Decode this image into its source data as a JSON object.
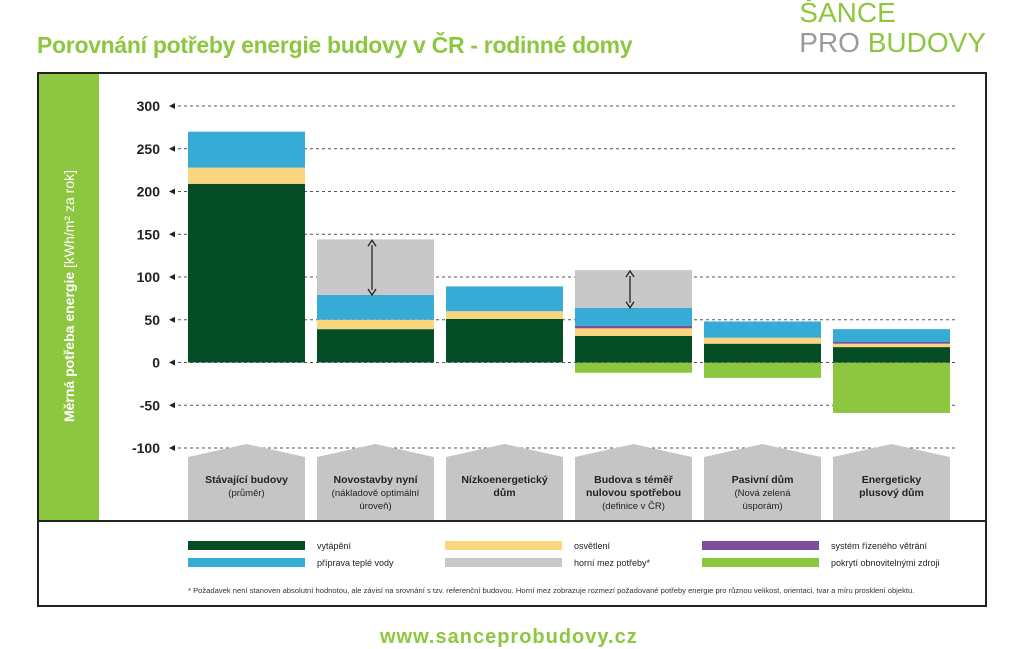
{
  "title": "Porovnání potřeby energie budovy v ČR - rodinné domy",
  "logo": {
    "line1": "ŠANCE",
    "pro": "PRO",
    "budovy": "BUDOVY"
  },
  "footer_url": "www.sanceprobudovy.cz",
  "footnote": "* Požadavek není stanoven absolutní hodnotou, ale závisí na srovnání s tzv. referenční budovou. Horní mez zobrazuje rozmezí požadované potřeby energie pro různou velikost, orientaci, tvar a míru prosklení objektu.",
  "colors": {
    "vytapeni": "#054d27",
    "osvetleni": "#f8d77e",
    "ventilace": "#7b4f9d",
    "tepla_voda": "#36abd6",
    "horni_mez": "#c8c8c8",
    "obnovitelne": "#8dc63f",
    "sidebar": "#8dc63f",
    "category_box": "#c5c5c5"
  },
  "chart_data": {
    "type": "bar",
    "stacked": true,
    "ylabel_bold": "Měrná potřeba energie",
    "ylabel_rest": " [kWh/m² za rok]",
    "ylim": [
      -100,
      300
    ],
    "yticks": [
      "300",
      "250",
      "200",
      "150",
      "100",
      "50",
      "0",
      "-50",
      "-100"
    ],
    "ytick_values": [
      300,
      250,
      200,
      150,
      100,
      50,
      0,
      -50,
      -100
    ],
    "grid": "dashed horizontal",
    "legend_position": "bottom",
    "categories": [
      {
        "lines": [
          "Stávající budovy"
        ],
        "sub": [
          "(průměr)"
        ]
      },
      {
        "lines": [
          "Novostavby nyní"
        ],
        "sub": [
          "(nákladově optimální",
          "úroveň)"
        ]
      },
      {
        "lines": [
          "Nízkoenergetický",
          "dům"
        ],
        "sub": []
      },
      {
        "lines": [
          "Budova s téměř",
          "nulovou spotřebou"
        ],
        "sub": [
          "(definice v ČR)"
        ]
      },
      {
        "lines": [
          "Pasivní dům"
        ],
        "sub": [
          "(Nová zelená",
          "úsporám)"
        ]
      },
      {
        "lines": [
          "Energeticky",
          "plusový dům"
        ],
        "sub": []
      }
    ],
    "series": [
      {
        "key": "vytapeni",
        "name": "vytápění",
        "values": [
          209,
          39,
          51,
          31,
          22,
          18
        ]
      },
      {
        "key": "osvetleni",
        "name": "osvětlení",
        "values": [
          19,
          11,
          9,
          9,
          7,
          4
        ]
      },
      {
        "key": "ventilace",
        "name": "systém řízeného větrání",
        "values": [
          0,
          0,
          0,
          3,
          0,
          2
        ]
      },
      {
        "key": "tepla_voda",
        "name": "příprava teplé vody",
        "values": [
          42,
          29,
          29,
          21,
          19,
          15
        ]
      },
      {
        "key": "horni_mez",
        "name": "horní mez potřeby*",
        "values": [
          0,
          65,
          0,
          44,
          0,
          0
        ]
      },
      {
        "key": "obnovitelne",
        "name": "pokrytí obnovitelnými zdroji",
        "values": [
          0,
          0,
          0,
          -12,
          -18,
          -59
        ]
      }
    ],
    "range_arrows": [
      {
        "category_index": 1,
        "from": 143,
        "to": 79
      },
      {
        "category_index": 3,
        "from": 107,
        "to": 64
      }
    ]
  }
}
